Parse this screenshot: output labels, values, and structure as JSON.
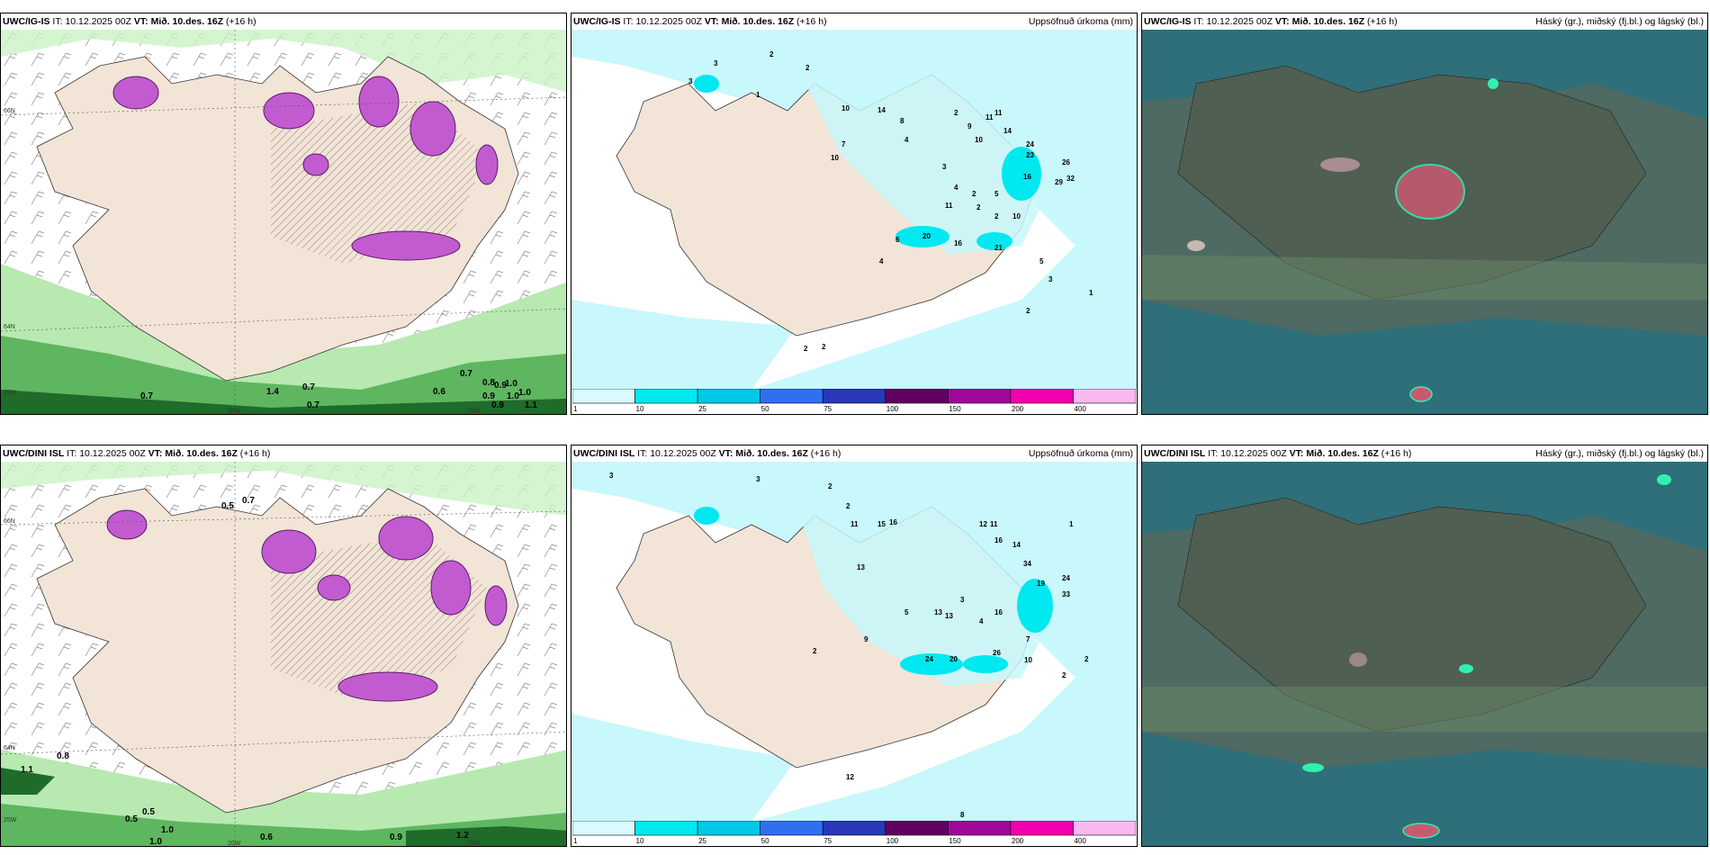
{
  "rows": [
    {
      "model": "UWC/IG-IS",
      "it_label": "IT:",
      "it_value": "10.12.2025 00Z",
      "vt_label": "VT:",
      "vt_value": "Mið. 10.des. 16Z",
      "lead": "(+16 h)"
    },
    {
      "model": "UWC/DINI ISL",
      "it_label": "IT:",
      "it_value": "10.12.2025 00Z",
      "vt_label": "VT:",
      "vt_value": "Mið. 10.des. 16Z",
      "lead": "(+16 h)"
    }
  ],
  "precip_title": "Uppsöfnuð úrkoma (mm)",
  "cloud_title": "Háský (gr.), miðský (fj.bl.) og lágský (bl.)",
  "colorbar": {
    "ticks": [
      "1",
      "10",
      "25",
      "50",
      "75",
      "100",
      "150",
      "200",
      "400"
    ],
    "colors": [
      "#d9fbff",
      "#00e8f0",
      "#00c8e8",
      "#3070f0",
      "#2838b8",
      "#600060",
      "#a00898",
      "#f000b0",
      "#f8b8f0"
    ]
  },
  "grid_labels": {
    "lat_66": "66N",
    "lat_64": "64N",
    "lon_25": "25W",
    "lon_20": "20W",
    "lon_15": "15W"
  },
  "wind_panel_values_top": [
    "0.7",
    "0.7",
    "0.7",
    "0.6",
    "0.7",
    "0.8",
    "0.9",
    "1.0",
    "0.9",
    "1.0",
    "1.1",
    "1.0",
    "0.9",
    "1.4"
  ],
  "wind_panel_values_bottom": [
    "0.5",
    "0.7",
    "0.5",
    "0.5",
    "1.0",
    "1.0",
    "0.6",
    "0.9",
    "1.2",
    "1.1",
    "0.8"
  ],
  "precip_values_top": [
    "3",
    "2",
    "2",
    "1",
    "10",
    "3",
    "7",
    "10",
    "14",
    "8",
    "4",
    "2",
    "9",
    "10",
    "11",
    "11",
    "14",
    "24",
    "23",
    "26",
    "29",
    "32",
    "16",
    "3",
    "4",
    "2",
    "5",
    "11",
    "2",
    "2",
    "10",
    "21",
    "20",
    "16",
    "6",
    "4",
    "5",
    "3",
    "1",
    "2",
    "2",
    "2"
  ],
  "precip_values_bottom": [
    "3",
    "3",
    "2",
    "2",
    "11",
    "15",
    "16",
    "12",
    "11",
    "16",
    "14",
    "24",
    "33",
    "34",
    "19",
    "13",
    "13",
    "24",
    "26",
    "20",
    "10",
    "9",
    "2",
    "2",
    "1",
    "8",
    "12",
    "4",
    "2",
    "3",
    "7",
    "13",
    "16",
    "5"
  ],
  "colors": {
    "land": "#f2e4d6",
    "cloud_bg": "#2e6f7a",
    "cloud_land": "#4f5f52",
    "precip_light": "#c8f8fb"
  }
}
